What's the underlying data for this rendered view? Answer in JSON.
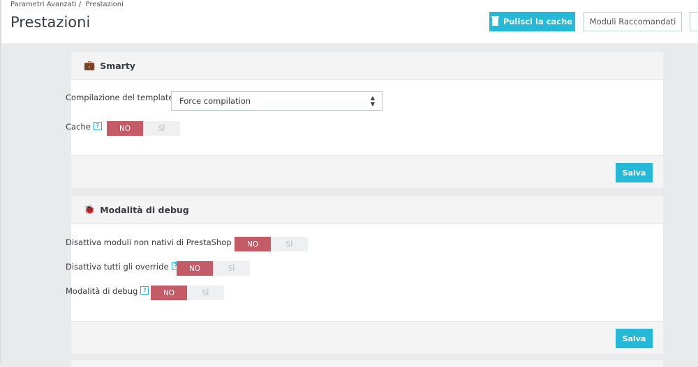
{
  "breadcrumb": {
    "parent": "Parametri Avanzati",
    "separator": "/",
    "current": "Prestazioni"
  },
  "page_title": "Prestazioni",
  "toolbar": {
    "clear_cache": "Pulisci la cache",
    "recommended_modules": "Moduli Raccomandati"
  },
  "smarty": {
    "title": "Smarty",
    "template_label": "Compilazione del template",
    "template_value": "Force compilation",
    "cache_label": "Cache",
    "cache_value": "NO",
    "save": "Salva"
  },
  "debug": {
    "title": "Modalità di debug",
    "fields": [
      {
        "label": "Disattiva moduli non nativi di PrestaShop",
        "value": "NO"
      },
      {
        "label": "Disattiva tutti gli override",
        "value": "NO"
      },
      {
        "label": "Modalità di debug",
        "value": "NO"
      }
    ],
    "save": "Salva"
  },
  "switch": {
    "no": "NO",
    "yes": "SÌ"
  },
  "help_glyph": "?",
  "colors": {
    "primary": "#25b9d7",
    "switch_off": "#c45c67"
  }
}
